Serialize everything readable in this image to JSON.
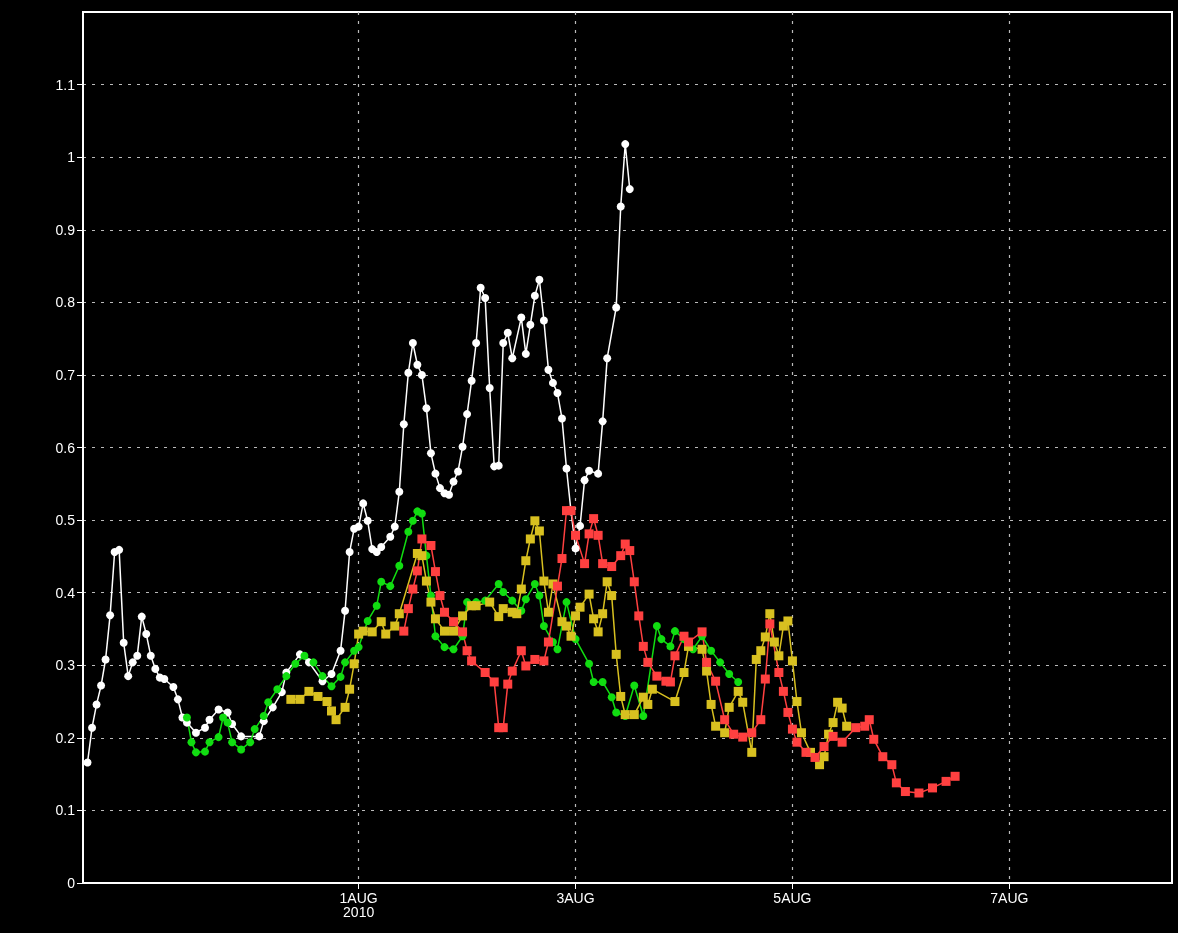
{
  "chart_data": {
    "type": "line",
    "xlim": [
      "2010-07-29T11:00",
      "2010-08-08T12:00"
    ],
    "xticks": [
      {
        "value": "2010-08-01T00:00",
        "label": "1AUG\n2010"
      },
      {
        "value": "2010-08-03T00:00",
        "label": "3AUG"
      },
      {
        "value": "2010-08-05T00:00",
        "label": "5AUG"
      },
      {
        "value": "2010-08-07T00:00",
        "label": "7AUG"
      }
    ],
    "ylim": [
      0,
      1.2
    ],
    "yticks": [
      0,
      0.1,
      0.2,
      0.3,
      0.4,
      0.5,
      0.6,
      0.7,
      0.8,
      0.9,
      1,
      1.1
    ],
    "grid": true,
    "line_style": "solid",
    "series": [
      {
        "color": "#ffffff",
        "marker": "circle",
        "x": [
          "2010-07-29T12:00",
          "2010-07-29T13:00",
          "2010-07-29T14:00",
          "2010-07-29T15:00",
          "2010-07-29T16:00",
          "2010-07-29T17:00",
          "2010-07-29T18:00",
          "2010-07-29T19:00",
          "2010-07-29T20:00",
          "2010-07-29T21:00",
          "2010-07-29T22:00",
          "2010-07-29T23:00",
          "2010-07-30T00:00",
          "2010-07-30T01:00",
          "2010-07-30T02:00",
          "2010-07-30T03:00",
          "2010-07-30T04:00",
          "2010-07-30T05:00",
          "2010-07-30T07:00",
          "2010-07-30T08:00",
          "2010-07-30T09:00",
          "2010-07-30T10:00",
          "2010-07-30T12:00",
          "2010-07-30T14:00",
          "2010-07-30T15:00",
          "2010-07-30T17:00",
          "2010-07-30T19:00",
          "2010-07-30T20:00",
          "2010-07-30T22:00",
          "2010-07-31T02:00",
          "2010-07-31T03:00",
          "2010-07-31T05:00",
          "2010-07-31T07:00",
          "2010-07-31T08:00",
          "2010-07-31T11:00",
          "2010-07-31T13:00",
          "2010-07-31T16:00",
          "2010-07-31T18:00",
          "2010-07-31T20:00",
          "2010-07-31T21:00",
          "2010-07-31T22:00",
          "2010-07-31T23:00",
          "2010-08-01T00:00",
          "2010-08-01T01:00",
          "2010-08-01T02:00",
          "2010-08-01T03:00",
          "2010-08-01T04:00",
          "2010-08-01T05:00",
          "2010-08-01T07:00",
          "2010-08-01T08:00",
          "2010-08-01T09:00",
          "2010-08-01T10:00",
          "2010-08-01T11:00",
          "2010-08-01T12:00",
          "2010-08-01T13:00",
          "2010-08-01T14:00",
          "2010-08-01T15:00",
          "2010-08-01T16:00",
          "2010-08-01T17:00",
          "2010-08-01T18:00",
          "2010-08-01T19:00",
          "2010-08-01T20:00",
          "2010-08-01T21:00",
          "2010-08-01T22:00",
          "2010-08-01T23:00",
          "2010-08-02T00:00",
          "2010-08-02T01:00",
          "2010-08-02T02:00",
          "2010-08-02T03:00",
          "2010-08-02T04:00",
          "2010-08-02T05:00",
          "2010-08-02T06:00",
          "2010-08-02T07:00",
          "2010-08-02T08:00",
          "2010-08-02T09:00",
          "2010-08-02T10:00",
          "2010-08-02T12:00",
          "2010-08-02T13:00",
          "2010-08-02T14:00",
          "2010-08-02T15:00",
          "2010-08-02T16:00",
          "2010-08-02T17:00",
          "2010-08-02T18:00",
          "2010-08-02T19:00",
          "2010-08-02T20:00",
          "2010-08-02T21:00",
          "2010-08-02T22:00",
          "2010-08-02T23:00",
          "2010-08-03T00:00",
          "2010-08-03T01:00",
          "2010-08-03T02:00",
          "2010-08-03T03:00",
          "2010-08-03T05:00",
          "2010-08-03T06:00",
          "2010-08-03T07:00",
          "2010-08-03T09:00",
          "2010-08-03T10:00",
          "2010-08-03T11:00",
          "2010-08-03T12:00"
        ],
        "values": [
          0.166,
          0.214,
          0.246,
          0.272,
          0.308,
          0.369,
          0.456,
          0.459,
          0.331,
          0.285,
          0.304,
          0.313,
          0.367,
          0.343,
          0.313,
          0.295,
          0.283,
          0.281,
          0.27,
          0.253,
          0.228,
          0.221,
          0.207,
          0.214,
          0.225,
          0.239,
          0.235,
          0.219,
          0.202,
          0.202,
          0.223,
          0.242,
          0.263,
          0.29,
          0.315,
          0.304,
          0.278,
          0.288,
          0.32,
          0.375,
          0.456,
          0.488,
          0.491,
          0.523,
          0.499,
          0.46,
          0.456,
          0.463,
          0.477,
          0.491,
          0.539,
          0.632,
          0.703,
          0.744,
          0.714,
          0.7,
          0.654,
          0.592,
          0.564,
          0.544,
          0.537,
          0.535,
          0.553,
          0.567,
          0.601,
          0.646,
          0.692,
          0.744,
          0.82,
          0.806,
          0.682,
          0.574,
          0.575,
          0.744,
          0.758,
          0.723,
          0.779,
          0.729,
          0.769,
          0.809,
          0.831,
          0.775,
          0.707,
          0.689,
          0.675,
          0.64,
          0.571,
          0.512,
          0.461,
          0.492,
          0.555,
          0.568,
          0.564,
          0.636,
          0.723,
          0.793,
          0.932,
          1.018,
          0.956
        ]
      },
      {
        "color": "#11dd11",
        "marker": "circle",
        "x": [
          "2010-07-30T10:00",
          "2010-07-30T11:00",
          "2010-07-30T12:00",
          "2010-07-30T14:00",
          "2010-07-30T15:00",
          "2010-07-30T17:00",
          "2010-07-30T18:00",
          "2010-07-30T19:00",
          "2010-07-30T20:00",
          "2010-07-30T22:00",
          "2010-07-31T00:00",
          "2010-07-31T01:00",
          "2010-07-31T03:00",
          "2010-07-31T04:00",
          "2010-07-31T06:00",
          "2010-07-31T08:00",
          "2010-07-31T10:00",
          "2010-07-31T12:00",
          "2010-07-31T14:00",
          "2010-07-31T16:00",
          "2010-07-31T18:00",
          "2010-07-31T20:00",
          "2010-07-31T21:00",
          "2010-07-31T23:00",
          "2010-08-01T00:00",
          "2010-08-01T02:00",
          "2010-08-01T04:00",
          "2010-08-01T05:00",
          "2010-08-01T07:00",
          "2010-08-01T09:00",
          "2010-08-01T11:00",
          "2010-08-01T12:00",
          "2010-08-01T13:00",
          "2010-08-01T14:00",
          "2010-08-01T15:00",
          "2010-08-01T16:00",
          "2010-08-01T17:00",
          "2010-08-01T19:00",
          "2010-08-01T21:00",
          "2010-08-01T23:00",
          "2010-08-02T00:00",
          "2010-08-02T02:00",
          "2010-08-02T04:00",
          "2010-08-02T07:00",
          "2010-08-02T08:00",
          "2010-08-02T10:00",
          "2010-08-02T12:00",
          "2010-08-02T13:00",
          "2010-08-02T15:00",
          "2010-08-02T16:00",
          "2010-08-02T17:00",
          "2010-08-02T19:00",
          "2010-08-02T20:00",
          "2010-08-02T22:00",
          "2010-08-03T00:00",
          "2010-08-03T03:00",
          "2010-08-03T04:00",
          "2010-08-03T06:00",
          "2010-08-03T08:00",
          "2010-08-03T09:00",
          "2010-08-03T11:00",
          "2010-08-03T13:00",
          "2010-08-03T15:00",
          "2010-08-03T18:00",
          "2010-08-03T19:00",
          "2010-08-03T21:00",
          "2010-08-03T22:00",
          "2010-08-04T00:00",
          "2010-08-04T02:00",
          "2010-08-04T04:00",
          "2010-08-04T06:00",
          "2010-08-04T08:00",
          "2010-08-04T10:00",
          "2010-08-04T12:00"
        ],
        "values": [
          0.228,
          0.194,
          0.18,
          0.181,
          0.194,
          0.201,
          0.228,
          0.221,
          0.194,
          0.184,
          0.194,
          0.212,
          0.23,
          0.249,
          0.267,
          0.285,
          0.302,
          0.313,
          0.304,
          0.285,
          0.271,
          0.284,
          0.304,
          0.32,
          0.325,
          0.361,
          0.382,
          0.415,
          0.409,
          0.437,
          0.484,
          0.499,
          0.512,
          0.509,
          0.451,
          0.396,
          0.34,
          0.325,
          0.322,
          0.34,
          0.387,
          0.387,
          0.389,
          0.412,
          0.401,
          0.389,
          0.375,
          0.391,
          0.412,
          0.396,
          0.354,
          0.332,
          0.322,
          0.387,
          0.336,
          0.302,
          0.277,
          0.277,
          0.256,
          0.235,
          0.23,
          0.272,
          0.23,
          0.354,
          0.336,
          0.326,
          0.347,
          0.336,
          0.322,
          0.34,
          0.32,
          0.304,
          0.288,
          0.277
        ]
      },
      {
        "color": "#d8c020",
        "marker": "square",
        "x": [
          "2010-07-31T09:00",
          "2010-07-31T11:00",
          "2010-07-31T13:00",
          "2010-07-31T15:00",
          "2010-07-31T17:00",
          "2010-07-31T18:00",
          "2010-07-31T19:00",
          "2010-07-31T21:00",
          "2010-07-31T22:00",
          "2010-07-31T23:00",
          "2010-08-01T00:00",
          "2010-08-01T01:00",
          "2010-08-01T03:00",
          "2010-08-01T05:00",
          "2010-08-01T06:00",
          "2010-08-01T08:00",
          "2010-08-01T09:00",
          "2010-08-01T13:00",
          "2010-08-01T14:00",
          "2010-08-01T15:00",
          "2010-08-01T16:00",
          "2010-08-01T17:00",
          "2010-08-01T19:00",
          "2010-08-01T21:00",
          "2010-08-01T23:00",
          "2010-08-02T01:00",
          "2010-08-02T02:00",
          "2010-08-02T05:00",
          "2010-08-02T07:00",
          "2010-08-02T08:00",
          "2010-08-02T10:00",
          "2010-08-02T11:00",
          "2010-08-02T12:00",
          "2010-08-02T13:00",
          "2010-08-02T14:00",
          "2010-08-02T15:00",
          "2010-08-02T16:00",
          "2010-08-02T17:00",
          "2010-08-02T18:00",
          "2010-08-02T19:00",
          "2010-08-02T21:00",
          "2010-08-02T22:00",
          "2010-08-02T23:00",
          "2010-08-03T00:00",
          "2010-08-03T01:00",
          "2010-08-03T03:00",
          "2010-08-03T04:00",
          "2010-08-03T05:00",
          "2010-08-03T06:00",
          "2010-08-03T07:00",
          "2010-08-03T08:00",
          "2010-08-03T09:00",
          "2010-08-03T10:00",
          "2010-08-03T11:00",
          "2010-08-03T13:00",
          "2010-08-03T15:00",
          "2010-08-03T16:00",
          "2010-08-03T17:00",
          "2010-08-03T22:00",
          "2010-08-04T00:00",
          "2010-08-04T01:00",
          "2010-08-04T04:00",
          "2010-08-04T05:00",
          "2010-08-04T06:00",
          "2010-08-04T07:00",
          "2010-08-04T09:00",
          "2010-08-04T10:00",
          "2010-08-04T12:00",
          "2010-08-04T13:00",
          "2010-08-04T15:00",
          "2010-08-04T16:00",
          "2010-08-04T17:00",
          "2010-08-04T18:00",
          "2010-08-04T19:00",
          "2010-08-04T20:00",
          "2010-08-04T21:00",
          "2010-08-04T22:00",
          "2010-08-04T23:00",
          "2010-08-05T00:00",
          "2010-08-05T01:00",
          "2010-08-05T02:00",
          "2010-08-05T04:00",
          "2010-08-05T06:00",
          "2010-08-05T07:00",
          "2010-08-05T08:00",
          "2010-08-05T09:00",
          "2010-08-05T10:00",
          "2010-08-05T11:00",
          "2010-08-05T12:00"
        ],
        "values": [
          0.253,
          0.253,
          0.264,
          0.257,
          0.25,
          0.237,
          0.225,
          0.242,
          0.267,
          0.302,
          0.343,
          0.347,
          0.346,
          0.36,
          0.343,
          0.354,
          0.371,
          0.454,
          0.451,
          0.416,
          0.387,
          0.364,
          0.347,
          0.347,
          0.368,
          0.382,
          0.382,
          0.387,
          0.367,
          0.378,
          0.373,
          0.371,
          0.405,
          0.444,
          0.474,
          0.499,
          0.485,
          0.416,
          0.373,
          0.412,
          0.36,
          0.354,
          0.34,
          0.368,
          0.38,
          0.398,
          0.364,
          0.346,
          0.371,
          0.415,
          0.396,
          0.315,
          0.257,
          0.232,
          0.232,
          0.256,
          0.246,
          0.267,
          0.25,
          0.29,
          0.326,
          0.322,
          0.292,
          0.246,
          0.216,
          0.207,
          0.242,
          0.264,
          0.249,
          0.18,
          0.308,
          0.32,
          0.339,
          0.371,
          0.332,
          0.313,
          0.354,
          0.361,
          0.306,
          0.25,
          0.207,
          0.18,
          0.163,
          0.174,
          0.205,
          0.221,
          0.249,
          0.241,
          0.216
        ]
      },
      {
        "color": "#ff4040",
        "marker": "square",
        "x": [
          "2010-08-01T10:00",
          "2010-08-01T11:00",
          "2010-08-01T12:00",
          "2010-08-01T13:00",
          "2010-08-01T14:00",
          "2010-08-01T16:00",
          "2010-08-01T17:00",
          "2010-08-01T18:00",
          "2010-08-01T19:00",
          "2010-08-01T21:00",
          "2010-08-01T23:00",
          "2010-08-02T00:00",
          "2010-08-02T01:00",
          "2010-08-02T04:00",
          "2010-08-02T06:00",
          "2010-08-02T07:00",
          "2010-08-02T08:00",
          "2010-08-02T09:00",
          "2010-08-02T10:00",
          "2010-08-02T12:00",
          "2010-08-02T13:00",
          "2010-08-02T15:00",
          "2010-08-02T17:00",
          "2010-08-02T18:00",
          "2010-08-02T20:00",
          "2010-08-02T21:00",
          "2010-08-02T22:00",
          "2010-08-02T23:00",
          "2010-08-03T00:00",
          "2010-08-03T02:00",
          "2010-08-03T03:00",
          "2010-08-03T04:00",
          "2010-08-03T05:00",
          "2010-08-03T06:00",
          "2010-08-03T08:00",
          "2010-08-03T10:00",
          "2010-08-03T11:00",
          "2010-08-03T12:00",
          "2010-08-03T13:00",
          "2010-08-03T14:00",
          "2010-08-03T15:00",
          "2010-08-03T16:00",
          "2010-08-03T18:00",
          "2010-08-03T20:00",
          "2010-08-03T21:00",
          "2010-08-03T22:00",
          "2010-08-04T00:00",
          "2010-08-04T01:00",
          "2010-08-04T04:00",
          "2010-08-04T05:00",
          "2010-08-04T07:00",
          "2010-08-04T09:00",
          "2010-08-04T11:00",
          "2010-08-04T13:00",
          "2010-08-04T15:00",
          "2010-08-04T17:00",
          "2010-08-04T18:00",
          "2010-08-04T19:00",
          "2010-08-04T21:00",
          "2010-08-04T22:00",
          "2010-08-04T23:00",
          "2010-08-05T00:00",
          "2010-08-05T01:00",
          "2010-08-05T03:00",
          "2010-08-05T05:00",
          "2010-08-05T07:00",
          "2010-08-05T09:00",
          "2010-08-05T11:00",
          "2010-08-05T14:00",
          "2010-08-05T16:00",
          "2010-08-05T17:00",
          "2010-08-05T18:00",
          "2010-08-05T20:00",
          "2010-08-05T22:00",
          "2010-08-05T23:00",
          "2010-08-06T01:00",
          "2010-08-06T04:00",
          "2010-08-06T07:00",
          "2010-08-06T10:00",
          "2010-08-06T12:00"
        ],
        "values": [
          0.347,
          0.378,
          0.405,
          0.43,
          0.474,
          0.465,
          0.429,
          0.396,
          0.373,
          0.36,
          0.346,
          0.32,
          0.306,
          0.29,
          0.277,
          0.214,
          0.214,
          0.274,
          0.292,
          0.32,
          0.299,
          0.308,
          0.306,
          0.332,
          0.409,
          0.447,
          0.513,
          0.513,
          0.479,
          0.44,
          0.481,
          0.502,
          0.479,
          0.44,
          0.436,
          0.451,
          0.467,
          0.458,
          0.415,
          0.368,
          0.326,
          0.304,
          0.285,
          0.278,
          0.277,
          0.313,
          0.34,
          0.332,
          0.346,
          0.304,
          0.278,
          0.225,
          0.205,
          0.201,
          0.207,
          0.225,
          0.281,
          0.357,
          0.29,
          0.264,
          0.235,
          0.212,
          0.194,
          0.18,
          0.173,
          0.188,
          0.202,
          0.194,
          0.214,
          0.216,
          0.225,
          0.198,
          0.174,
          0.163,
          0.138,
          0.126,
          0.124,
          0.131,
          0.14,
          0.147
        ]
      }
    ]
  }
}
